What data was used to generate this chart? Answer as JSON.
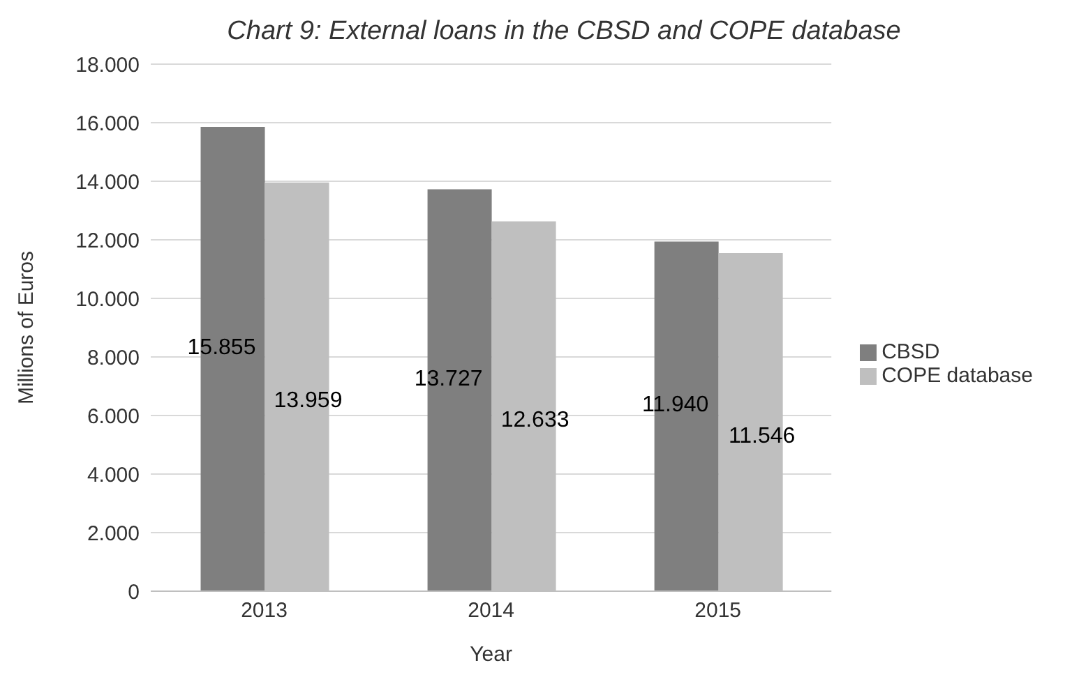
{
  "chart_data": {
    "type": "bar",
    "title": "Chart 9: External loans in the CBSD and COPE database",
    "xlabel": "Year",
    "ylabel": "Millions of Euros",
    "categories": [
      "2013",
      "2014",
      "2015"
    ],
    "series": [
      {
        "name": "CBSD",
        "color": "#7f7f7f",
        "values": [
          15855,
          13727,
          11940
        ],
        "value_labels": [
          "15.855",
          "13.727",
          "11.940"
        ]
      },
      {
        "name": "COPE database",
        "color": "#bfbfbf",
        "values": [
          13959,
          12633,
          11546
        ],
        "value_labels": [
          "13.959",
          "12.633",
          "11.546"
        ]
      }
    ],
    "ylim": [
      0,
      18000
    ],
    "yticks": [
      {
        "value": 0,
        "label": "0"
      },
      {
        "value": 2000,
        "label": "2.000"
      },
      {
        "value": 4000,
        "label": "4.000"
      },
      {
        "value": 6000,
        "label": "6.000"
      },
      {
        "value": 8000,
        "label": "8.000"
      },
      {
        "value": 10000,
        "label": "10.000"
      },
      {
        "value": 12000,
        "label": "12.000"
      },
      {
        "value": 14000,
        "label": "14.000"
      },
      {
        "value": 16000,
        "label": "16.000"
      },
      {
        "value": 18000,
        "label": "18.000"
      }
    ],
    "grid": "y",
    "legend": "right"
  }
}
